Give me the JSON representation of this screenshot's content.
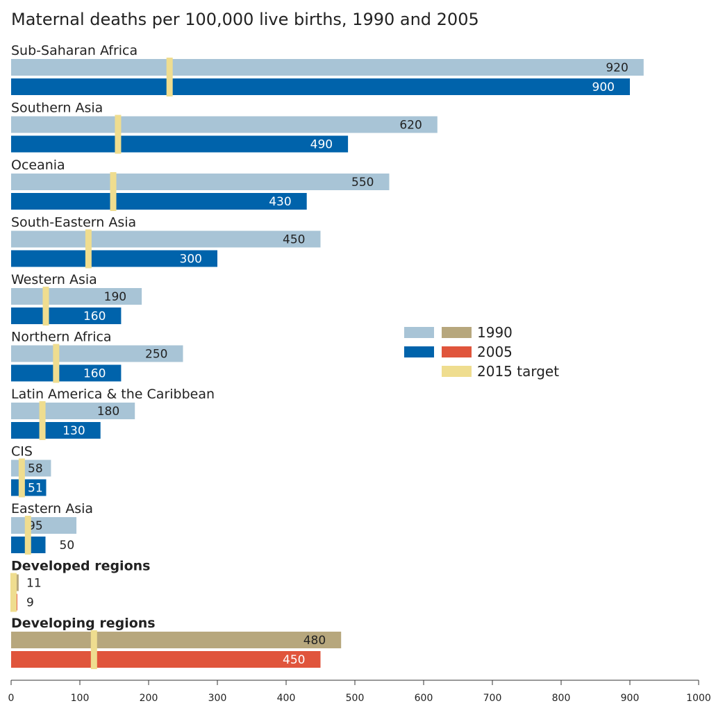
{
  "chart_data": {
    "type": "bar",
    "orientation": "horizontal",
    "title": "Maternal deaths per 100,000 live births, 1990 and 2005",
    "xlim": [
      0,
      1000
    ],
    "ticks": [
      0,
      100,
      200,
      300,
      400,
      500,
      600,
      700,
      800,
      900,
      1000
    ],
    "grid": false,
    "legend_position": "right-middle",
    "categories": [
      "Sub-Saharan Africa",
      "Southern Asia",
      "Oceania",
      "South-Eastern Asia",
      "Western Asia",
      "Northern Africa",
      "Latin America & the Caribbean",
      "CIS",
      "Eastern Asia",
      "Developed regions",
      "Developing regions"
    ],
    "bold_categories": [
      "Developed regions",
      "Developing regions"
    ],
    "series": [
      {
        "name": "1990",
        "values": [
          920,
          620,
          550,
          450,
          190,
          250,
          180,
          58,
          95,
          11,
          480
        ]
      },
      {
        "name": "2005",
        "values": [
          900,
          490,
          430,
          300,
          160,
          160,
          130,
          51,
          50,
          9,
          450
        ]
      },
      {
        "name": "2015 target",
        "values": [
          230,
          155,
          148,
          112,
          50,
          65,
          45,
          15,
          24,
          3,
          120
        ]
      }
    ],
    "colors": {
      "regional_1990": "#a8c4d6",
      "regional_2005": "#0063ab",
      "aggregate_1990": "#b7a77d",
      "aggregate_2005": "#e0553c",
      "target": "#efdd8f"
    },
    "legend": {
      "entries": [
        "1990",
        "2005",
        "2015 target"
      ]
    }
  }
}
